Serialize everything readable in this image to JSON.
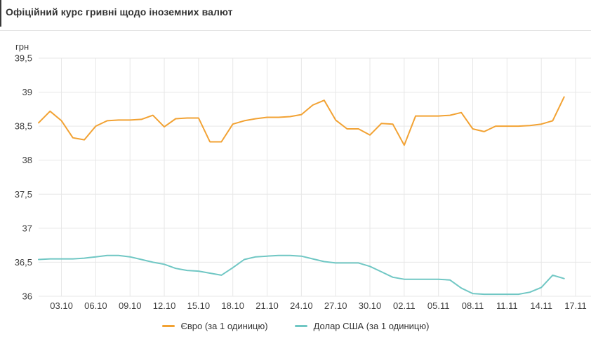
{
  "page": {
    "title": "Офіційний курс гривні щодо іноземних валют",
    "y_axis_unit": "грн"
  },
  "chart_data": {
    "type": "line",
    "title": "Офіційний курс гривні щодо іноземних валют",
    "ylabel": "грн",
    "xlabel": "",
    "grid": true,
    "legend_position": "bottom",
    "ylim": [
      36,
      39.5
    ],
    "ytick_values": [
      39.5,
      39,
      38.5,
      38,
      37.5,
      37,
      36.5,
      36
    ],
    "ytick_labels": [
      "39,5",
      "39",
      "38,5",
      "38",
      "37,5",
      "37",
      "36,5",
      "36"
    ],
    "xtick_labels": [
      "03.10",
      "06.10",
      "09.10",
      "12.10",
      "15.10",
      "18.10",
      "21.10",
      "24.10",
      "27.10",
      "30.10",
      "02.11",
      "05.11",
      "08.11",
      "11.11",
      "14.11",
      "17.11"
    ],
    "x_start_date": "01.10",
    "x_axis_span_days": 47,
    "x": [
      "01.10",
      "02.10",
      "03.10",
      "04.10",
      "05.10",
      "06.10",
      "07.10",
      "08.10",
      "09.10",
      "10.10",
      "11.10",
      "12.10",
      "13.10",
      "14.10",
      "15.10",
      "16.10",
      "17.10",
      "18.10",
      "19.10",
      "20.10",
      "21.10",
      "22.10",
      "23.10",
      "24.10",
      "25.10",
      "26.10",
      "27.10",
      "28.10",
      "29.10",
      "30.10",
      "31.10",
      "01.11",
      "02.11",
      "03.11",
      "04.11",
      "05.11",
      "06.11",
      "07.11",
      "08.11",
      "09.11",
      "10.11",
      "11.11",
      "12.11",
      "13.11",
      "14.11",
      "15.11",
      "16.11"
    ],
    "series": [
      {
        "key": "euro",
        "name": "Євро (за 1 одиницю)",
        "color": "#f2a233",
        "values": [
          38.55,
          38.72,
          38.58,
          38.33,
          38.3,
          38.5,
          38.58,
          38.59,
          38.59,
          38.6,
          38.66,
          38.49,
          38.61,
          38.62,
          38.62,
          38.27,
          38.27,
          38.53,
          38.58,
          38.61,
          38.63,
          38.63,
          38.64,
          38.67,
          38.81,
          38.88,
          38.59,
          38.46,
          38.46,
          38.37,
          38.54,
          38.53,
          38.22,
          38.65,
          38.65,
          38.65,
          38.66,
          38.7,
          38.46,
          38.42,
          38.5,
          38.5,
          38.5,
          38.51,
          38.53,
          38.58,
          38.93
        ]
      },
      {
        "key": "usd",
        "name": "Долар США (за 1 одиницю)",
        "color": "#70c7c4",
        "values": [
          36.54,
          36.55,
          36.55,
          36.55,
          36.56,
          36.58,
          36.6,
          36.6,
          36.58,
          36.54,
          36.5,
          36.47,
          36.41,
          36.38,
          36.37,
          36.34,
          36.31,
          36.42,
          36.54,
          36.58,
          36.59,
          36.6,
          36.6,
          36.59,
          36.55,
          36.51,
          36.49,
          36.49,
          36.49,
          36.44,
          36.36,
          36.28,
          36.25,
          36.25,
          36.25,
          36.25,
          36.24,
          36.12,
          36.04,
          36.03,
          36.03,
          36.03,
          36.03,
          36.06,
          36.13,
          36.31,
          36.26
        ]
      }
    ]
  },
  "colors": {
    "grid": "#e7e7e7",
    "axis_text": "#3f3f3f",
    "divider": "#e4e4e4",
    "title_text": "#333333",
    "euro_line": "#f2a233",
    "usd_line": "#70c7c4"
  }
}
